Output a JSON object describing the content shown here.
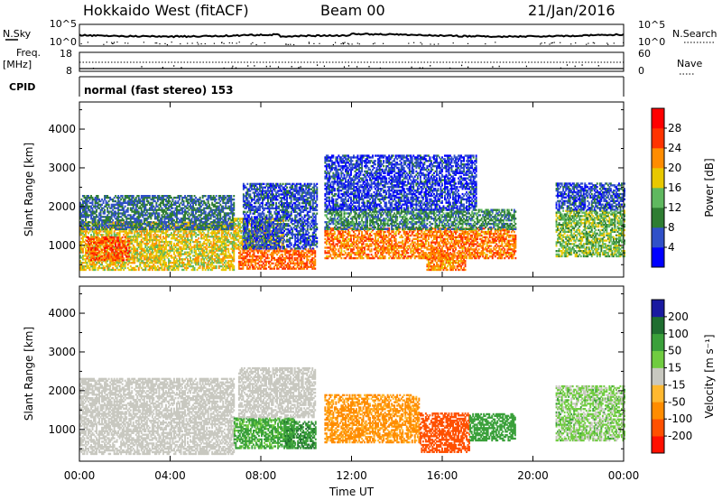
{
  "header": {
    "station": "Hokkaido West (fitACF)",
    "beam": "Beam 00",
    "date": "21/Jan/2016"
  },
  "top_panels": {
    "nsky_label": "N.Sky",
    "nsky_left_ticks": [
      "10^5",
      "10^0"
    ],
    "nsky_right_ticks": [
      "10^5",
      "10^0"
    ],
    "nsearch_label": "N.Search",
    "freq_label_1": "Freq.",
    "freq_label_2": "[MHz]",
    "freq_ticks": [
      "18",
      "8"
    ],
    "nave_ticks": [
      "60",
      "0"
    ],
    "nave_label": "Nave",
    "cpid_label": "CPID",
    "cpid_text": "normal (fast stereo) 153"
  },
  "chart_data": [
    {
      "type": "heatmap",
      "panel": "power",
      "ylabel": "Slant Range [km]",
      "xlabel": "",
      "x_ticks": [
        "00:00",
        "04:00",
        "08:00",
        "12:00",
        "16:00",
        "20:00",
        "00:00"
      ],
      "xlim": [
        0,
        24
      ],
      "ylim": [
        180,
        4700
      ],
      "y_ticks": [
        1000,
        2000,
        3000,
        4000
      ],
      "colorbar": {
        "label": "Power [dB]",
        "ticks": [
          4,
          8,
          12,
          16,
          20,
          24,
          28
        ],
        "range": [
          0,
          32
        ],
        "colors": [
          "#0000ff",
          "#3050c8",
          "#2e7d32",
          "#5fb85f",
          "#e8c800",
          "#ff8c00",
          "#ff3300",
          "#ff0000"
        ]
      },
      "regions": [
        {
          "t0": 0.0,
          "t1": 6.8,
          "r0": 350,
          "r1": 1600,
          "power": 18
        },
        {
          "t0": 0.3,
          "t1": 2.2,
          "r0": 600,
          "r1": 1200,
          "power": 25
        },
        {
          "t0": 0.0,
          "t1": 6.8,
          "r0": 1400,
          "r1": 2300,
          "power": 8
        },
        {
          "t0": 6.8,
          "t1": 9.0,
          "r0": 900,
          "r1": 1700,
          "power": 18
        },
        {
          "t0": 7.0,
          "t1": 10.4,
          "r0": 380,
          "r1": 900,
          "power": 24
        },
        {
          "t0": 7.2,
          "t1": 10.5,
          "r0": 900,
          "r1": 2600,
          "power": 6
        },
        {
          "t0": 10.8,
          "t1": 19.2,
          "r0": 650,
          "r1": 1450,
          "power": 23
        },
        {
          "t0": 10.8,
          "t1": 19.2,
          "r0": 1400,
          "r1": 1900,
          "power": 10
        },
        {
          "t0": 10.8,
          "t1": 17.5,
          "r0": 1900,
          "r1": 3300,
          "power": 5
        },
        {
          "t0": 15.3,
          "t1": 17.0,
          "r0": 350,
          "r1": 800,
          "power": 22
        },
        {
          "t0": 21.0,
          "t1": 24.0,
          "r0": 700,
          "r1": 1900,
          "power": 14
        },
        {
          "t0": 21.0,
          "t1": 24.0,
          "r0": 1900,
          "r1": 2600,
          "power": 6
        }
      ]
    },
    {
      "type": "heatmap",
      "panel": "velocity",
      "ylabel": "Slant Range [km]",
      "xlabel": "Time UT",
      "x_ticks": [
        "00:00",
        "04:00",
        "08:00",
        "12:00",
        "16:00",
        "20:00",
        "00:00"
      ],
      "xlim": [
        0,
        24
      ],
      "ylim": [
        180,
        4700
      ],
      "y_ticks": [
        1000,
        2000,
        3000,
        4000
      ],
      "colorbar": {
        "label": "Velocity [m s⁻¹]",
        "ticks": [
          200,
          100,
          50,
          15,
          -15,
          -50,
          -100,
          -200
        ],
        "tick_labels": [
          "200",
          "100",
          "50",
          "15",
          "-15",
          "-50",
          "-100",
          "-200"
        ],
        "colors": [
          "#1a1aa0",
          "#1f6e30",
          "#3aa03a",
          "#70cc40",
          "#c8c8c0",
          "#ffb830",
          "#ff8c00",
          "#ff5000",
          "#ff1000"
        ]
      },
      "regions": [
        {
          "t0": 0.0,
          "t1": 6.8,
          "r0": 350,
          "r1": 2300,
          "vel": 0
        },
        {
          "t0": 6.8,
          "t1": 9.5,
          "r0": 500,
          "r1": 1300,
          "vel": 40
        },
        {
          "t0": 9.0,
          "t1": 10.4,
          "r0": 500,
          "r1": 1200,
          "vel": 70
        },
        {
          "t0": 7.0,
          "t1": 10.4,
          "r0": 1300,
          "r1": 2600,
          "vel": 0
        },
        {
          "t0": 10.8,
          "t1": 15.0,
          "r0": 650,
          "r1": 1900,
          "vel": -40
        },
        {
          "t0": 15.0,
          "t1": 17.2,
          "r0": 400,
          "r1": 1400,
          "vel": -90
        },
        {
          "t0": 17.2,
          "t1": 19.2,
          "r0": 700,
          "r1": 1400,
          "vel": 60
        },
        {
          "t0": 21.0,
          "t1": 24.0,
          "r0": 700,
          "r1": 2100,
          "vel": 20
        }
      ]
    }
  ]
}
